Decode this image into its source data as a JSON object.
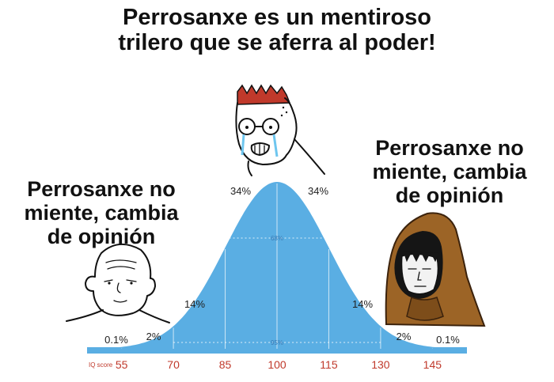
{
  "captions": {
    "top": "Perrosanxe es un mentiroso\ntrilero que se aferra al poder!",
    "left": "Perrosanxe no\nmiente, cambia\nde opinión",
    "right": "Perrosanxe no\nmiente, cambia\nde opinión"
  },
  "chart_data": {
    "type": "area",
    "title": "",
    "xlabel": "IQ score",
    "ylabel": "",
    "x_ticks": [
      55,
      70,
      85,
      100,
      115,
      130,
      145
    ],
    "xlim": [
      45,
      155
    ],
    "mean": 100,
    "sd": 15,
    "band_labels": [
      {
        "text": "0.1%"
      },
      {
        "text": "2%"
      },
      {
        "text": "14%"
      },
      {
        "text": "34%"
      },
      {
        "text": "34%"
      },
      {
        "text": "14%"
      },
      {
        "text": "2%"
      },
      {
        "text": "0.1%"
      }
    ],
    "inner_labels": [
      "68%",
      "95%"
    ],
    "fill_color": "#5aaee3",
    "tick_color": "#c0392b"
  },
  "characters": [
    {
      "name": "wojak-left",
      "label": "simple wojak"
    },
    {
      "name": "wojak-center",
      "label": "crying wojak"
    },
    {
      "name": "wojak-right",
      "label": "hooded monk"
    }
  ]
}
